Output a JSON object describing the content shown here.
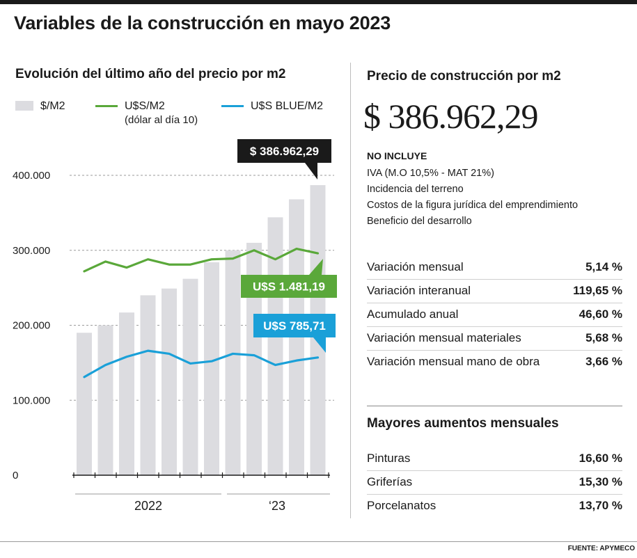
{
  "title": "Variables de la construcción en mayo 2023",
  "colors": {
    "bar": "#dcdce0",
    "green": "#5aa83a",
    "blue": "#1aa0d8",
    "callout_dark": "#1a1a1a"
  },
  "chart_data": {
    "type": "bar",
    "title": "Evolución del último año del precio por m2",
    "legend": {
      "placement": "top",
      "bar_label": "$/M2"
    },
    "ylim": [
      0,
      400000
    ],
    "yticks": [
      "400.000",
      "300.000",
      "200.000",
      "100.000",
      "0"
    ],
    "ytick_values": [
      400000,
      300000,
      200000,
      100000,
      0
    ],
    "grid": true,
    "x_group_labels": [
      "2022",
      "‘23"
    ],
    "values": [
      190000,
      200000,
      217000,
      240000,
      249000,
      262000,
      284000,
      300000,
      310000,
      344000,
      368000,
      386962.29
    ],
    "series": [
      {
        "name": "U$S/M2",
        "name_sub": "(dólar al día 10)",
        "values": [
          272000,
          285000,
          277000,
          288000,
          281000,
          281000,
          288000,
          289000,
          300000,
          288000,
          302000,
          296000
        ]
      },
      {
        "name": "U$S BLUE/M2",
        "values": [
          131000,
          147000,
          158000,
          166000,
          162000,
          149000,
          152000,
          162000,
          160000,
          147000,
          153000,
          157000
        ]
      }
    ],
    "callouts": {
      "bar": "$ 386.962,29",
      "green": "U$S 1.481,19",
      "blue": "U$S 785,71"
    }
  },
  "right_panel": {
    "title": "Precio de construcción por m2",
    "price": "$ 386.962,29",
    "exclusions_title": "NO INCLUYE",
    "exclusions": [
      "IVA (M.O 10,5% - MAT 21%)",
      "Incidencia del terreno",
      "Costos de la figura jurídica del emprendimiento",
      "Beneficio del desarrollo"
    ],
    "stats": [
      {
        "label": "Variación mensual",
        "value": "5,14 %"
      },
      {
        "label": "Variación interanual",
        "value": "119,65 %"
      },
      {
        "label": "Acumulado anual",
        "value": "46,60 %"
      },
      {
        "label": "Variación mensual materiales",
        "value": "5,68 %"
      },
      {
        "label": "Variación mensual mano de obra",
        "value": "3,66 %"
      }
    ],
    "increases_title": "Mayores aumentos mensuales",
    "increases": [
      {
        "label": "Pinturas",
        "value": "16,60 %"
      },
      {
        "label": "Griferías",
        "value": "15,30 %"
      },
      {
        "label": "Porcelanatos",
        "value": "13,70 %"
      }
    ]
  },
  "source": "FUENTE: APYMECO"
}
